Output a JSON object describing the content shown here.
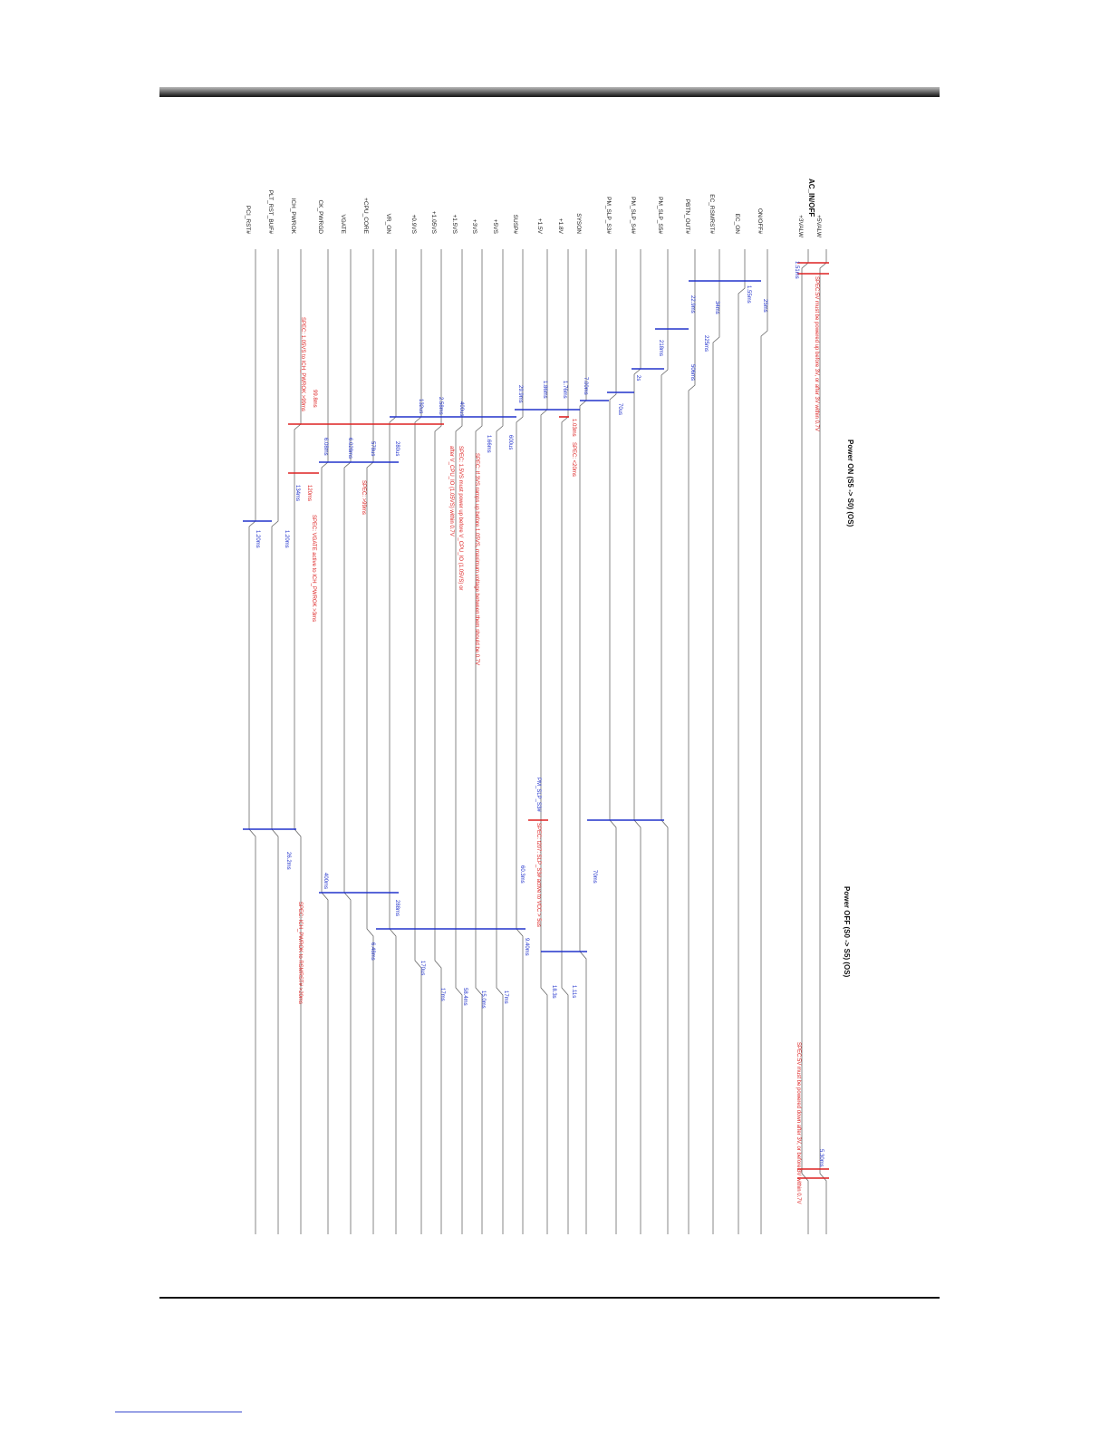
{
  "diagram": {
    "group_label": "AC_IN/OFF",
    "sections": [
      "Power ON (S5 -> S0) (OS)",
      "Power OFF (S0 -> S5) (OS)"
    ],
    "signals": [
      "+5VALW",
      "+3VALW",
      "ON/OFF#",
      "EC_ON",
      "EC_RSMRST#",
      "PBTN_OUT#",
      "PM_SLP_S5#",
      "PM_SLP_S4#",
      "PM_SLP_S3#",
      "SYSON",
      "+1.8V",
      "+1.5V",
      "SUSP#",
      "+5VS",
      "+3VS",
      "+1.5VS",
      "+1.05VS",
      "+0.9VS",
      "VR_ON",
      "+CPU_CORE",
      "VGATE",
      "CK_PWRGD",
      "ICH_PWROK",
      "PLT_RST_BUF#",
      "PCI_RST#"
    ],
    "timing_color": "#2233cc",
    "spec_color": "#dd2222",
    "annotations": [
      {
        "text": "1.51ms",
        "kind": "timing"
      },
      {
        "text": "SPEC:5V must be powered up before 3V, or after 3V within 0.7V",
        "kind": "spec"
      },
      {
        "text": "25ms",
        "kind": "timing"
      },
      {
        "text": "1.55ms",
        "kind": "timing"
      },
      {
        "text": "34ms",
        "kind": "timing"
      },
      {
        "text": "22.9ms",
        "kind": "timing"
      },
      {
        "text": "225ms",
        "kind": "timing"
      },
      {
        "text": "218ms",
        "kind": "timing"
      },
      {
        "text": "506ms",
        "kind": "timing"
      },
      {
        "text": "2s",
        "kind": "timing"
      },
      {
        "text": "7.00ms",
        "kind": "timing"
      },
      {
        "text": "1.76ms",
        "kind": "timing"
      },
      {
        "text": "1.86ms",
        "kind": "timing"
      },
      {
        "text": "29.9ms",
        "kind": "timing"
      },
      {
        "text": "70us",
        "kind": "timing"
      },
      {
        "text": "400us",
        "kind": "timing"
      },
      {
        "text": "2.58ms",
        "kind": "timing"
      },
      {
        "text": "132us",
        "kind": "timing"
      },
      {
        "text": "1.03ms",
        "kind": "spec"
      },
      {
        "text": "SPEC: <20ms",
        "kind": "spec"
      },
      {
        "text": "600us",
        "kind": "timing"
      },
      {
        "text": "1.66ms",
        "kind": "timing"
      },
      {
        "text": "SPEC: If 3VS ramps up before 1.05VS, maximum voltage between them should be 0.7V",
        "kind": "spec"
      },
      {
        "text": "SPEC: 1.5VS must power up before V_CPU_IO (1.05VS) or",
        "kind": "spec"
      },
      {
        "text": "after V_CPU_IO (1.05VS) within 0.7V",
        "kind": "spec"
      },
      {
        "text": "SPEC: 1.05VS to ICH_PWROK >99ms",
        "kind": "spec"
      },
      {
        "text": "99.8ms",
        "kind": "spec"
      },
      {
        "text": "6.08ms",
        "kind": "timing"
      },
      {
        "text": "6.028ms",
        "kind": "timing"
      },
      {
        "text": "578us",
        "kind": "timing"
      },
      {
        "text": "280us",
        "kind": "timing"
      },
      {
        "text": "SPEC: >99ms",
        "kind": "spec"
      },
      {
        "text": "120ms",
        "kind": "spec"
      },
      {
        "text": "134ms",
        "kind": "timing"
      },
      {
        "text": "SPEC: VGATE active to ICH_PWROK >3ms",
        "kind": "spec"
      },
      {
        "text": "1.20ms",
        "kind": "timing"
      },
      {
        "text": "1.20ms",
        "kind": "timing"
      },
      {
        "text": "PM_SLP_S3#",
        "kind": "timing"
      },
      {
        "text": "SPEC: t207: SLP_S3# active to VCC > 5us",
        "kind": "spec"
      },
      {
        "text": "70ms",
        "kind": "timing"
      },
      {
        "text": "60.3ms",
        "kind": "timing"
      },
      {
        "text": "26.2ms",
        "kind": "timing"
      },
      {
        "text": "400ms",
        "kind": "timing"
      },
      {
        "text": "288ms",
        "kind": "timing"
      },
      {
        "text": "9.40ms",
        "kind": "timing"
      },
      {
        "text": "6.48ms",
        "kind": "timing"
      },
      {
        "text": "SPEC: ICH_PWROK to RSMRST# >20ms",
        "kind": "spec"
      },
      {
        "text": "170us",
        "kind": "timing"
      },
      {
        "text": "1.11s",
        "kind": "timing"
      },
      {
        "text": "18.3s",
        "kind": "timing"
      },
      {
        "text": "17ms",
        "kind": "timing"
      },
      {
        "text": "15.0ms",
        "kind": "timing"
      },
      {
        "text": "58.4ms",
        "kind": "timing"
      },
      {
        "text": "17ms",
        "kind": "timing"
      },
      {
        "text": "SPEC:5V must be powered down after 3V, or before 3V within 0.7V",
        "kind": "spec"
      },
      {
        "text": "5.30ms",
        "kind": "timing"
      }
    ]
  }
}
